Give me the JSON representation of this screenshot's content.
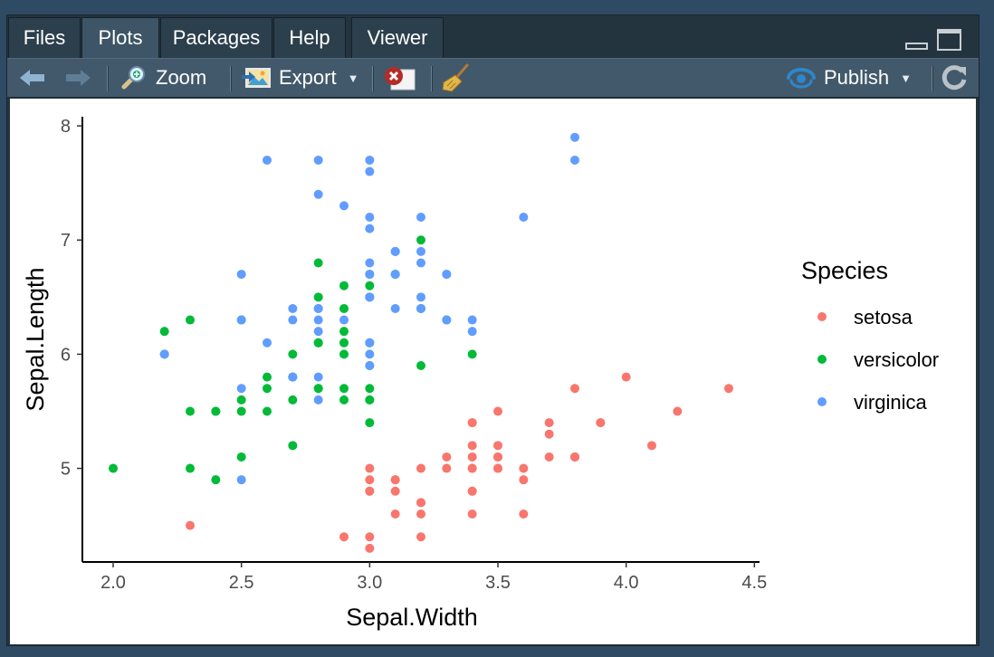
{
  "tabs": [
    {
      "label": "Files"
    },
    {
      "label": "Plots"
    },
    {
      "label": "Packages"
    },
    {
      "label": "Help"
    },
    {
      "label": "Viewer"
    }
  ],
  "toolbar": {
    "zoom_label": "Zoom",
    "export_label": "Export",
    "publish_label": "Publish"
  },
  "colors": {
    "setosa": "#F8766D",
    "versicolor": "#00BA38",
    "virginica": "#619CFF"
  },
  "chart_data": {
    "type": "scatter",
    "xlabel": "Sepal.Width",
    "ylabel": "Sepal.Length",
    "xlim": [
      1.88,
      4.52
    ],
    "ylim": [
      4.18,
      8.08
    ],
    "xticks": [
      "2.0",
      "2.5",
      "3.0",
      "3.5",
      "4.0",
      "4.5"
    ],
    "xtick_values": [
      2.0,
      2.5,
      3.0,
      3.5,
      4.0,
      4.5
    ],
    "yticks": [
      "5",
      "6",
      "7",
      "8"
    ],
    "ytick_values": [
      5,
      6,
      7,
      8
    ],
    "legend": {
      "title": "Species",
      "position": "right"
    },
    "series": [
      {
        "name": "setosa",
        "color": "#F8766D",
        "x": [
          3.5,
          3.0,
          3.2,
          3.1,
          3.6,
          3.9,
          3.4,
          3.4,
          2.9,
          3.1,
          3.7,
          3.4,
          3.0,
          3.0,
          4.0,
          4.4,
          3.9,
          3.5,
          3.8,
          3.8,
          3.4,
          3.7,
          3.6,
          3.3,
          3.4,
          3.0,
          3.4,
          3.5,
          3.4,
          3.2,
          3.1,
          3.4,
          4.1,
          4.2,
          3.1,
          3.2,
          3.5,
          3.6,
          3.0,
          3.4,
          3.5,
          2.3,
          3.2,
          3.5,
          3.8,
          3.0,
          3.8,
          3.2,
          3.7,
          3.3
        ],
        "y": [
          5.1,
          4.9,
          4.7,
          4.6,
          5.0,
          5.4,
          4.6,
          5.0,
          4.4,
          4.9,
          5.4,
          4.8,
          4.8,
          4.3,
          5.8,
          5.7,
          5.4,
          5.1,
          5.7,
          5.1,
          5.4,
          5.1,
          4.6,
          5.1,
          4.8,
          5.0,
          5.0,
          5.2,
          5.2,
          4.7,
          4.8,
          5.4,
          5.2,
          5.5,
          4.9,
          5.0,
          5.5,
          4.9,
          4.4,
          5.1,
          5.0,
          4.5,
          4.4,
          5.0,
          5.1,
          4.8,
          5.1,
          4.6,
          5.3,
          5.0
        ]
      },
      {
        "name": "versicolor",
        "color": "#00BA38",
        "x": [
          3.2,
          3.2,
          3.1,
          2.3,
          2.8,
          2.8,
          3.3,
          2.4,
          2.9,
          2.7,
          2.0,
          3.0,
          2.2,
          2.9,
          2.9,
          3.1,
          3.0,
          2.7,
          2.2,
          2.5,
          3.2,
          2.8,
          2.5,
          2.8,
          2.9,
          3.0,
          2.8,
          3.0,
          2.9,
          2.6,
          2.4,
          2.4,
          2.7,
          2.7,
          3.0,
          3.4,
          3.1,
          2.3,
          3.0,
          2.5,
          2.6,
          3.0,
          2.6,
          2.3,
          2.7,
          3.0,
          2.9,
          2.9,
          2.5,
          2.8
        ],
        "y": [
          7.0,
          6.4,
          6.9,
          5.5,
          6.5,
          5.7,
          6.3,
          4.9,
          6.6,
          5.2,
          5.0,
          5.9,
          6.0,
          6.1,
          5.6,
          6.7,
          5.6,
          5.8,
          6.2,
          5.6,
          5.9,
          6.1,
          6.3,
          6.1,
          6.4,
          6.6,
          6.8,
          6.7,
          6.0,
          5.7,
          5.5,
          5.5,
          5.8,
          6.0,
          5.4,
          6.0,
          6.7,
          6.3,
          5.6,
          5.5,
          5.5,
          6.1,
          5.8,
          5.0,
          5.6,
          5.7,
          5.7,
          6.2,
          5.1,
          5.7
        ]
      },
      {
        "name": "virginica",
        "color": "#619CFF",
        "x": [
          3.3,
          2.7,
          3.0,
          2.9,
          3.0,
          3.0,
          2.5,
          2.9,
          2.5,
          3.6,
          3.2,
          2.7,
          3.0,
          2.5,
          2.8,
          3.2,
          3.0,
          3.8,
          2.6,
          2.2,
          3.2,
          2.8,
          2.8,
          2.7,
          3.3,
          3.2,
          2.8,
          3.0,
          2.8,
          3.0,
          2.8,
          3.8,
          2.8,
          2.8,
          2.6,
          3.0,
          3.4,
          3.1,
          3.0,
          3.1,
          3.1,
          3.1,
          2.7,
          3.2,
          3.3,
          3.0,
          2.5,
          3.0,
          3.4,
          3.0
        ],
        "y": [
          6.3,
          5.8,
          7.1,
          6.3,
          6.5,
          7.6,
          4.9,
          7.3,
          6.7,
          7.2,
          6.5,
          6.4,
          6.8,
          5.7,
          5.8,
          6.4,
          6.5,
          7.7,
          7.7,
          6.0,
          6.9,
          5.6,
          7.7,
          6.3,
          6.7,
          7.2,
          6.2,
          6.1,
          6.4,
          7.2,
          7.4,
          7.9,
          6.4,
          6.3,
          6.1,
          7.7,
          6.3,
          6.4,
          6.0,
          6.9,
          6.7,
          6.9,
          5.8,
          6.8,
          6.7,
          6.7,
          6.3,
          6.5,
          6.2,
          5.9
        ]
      }
    ]
  }
}
